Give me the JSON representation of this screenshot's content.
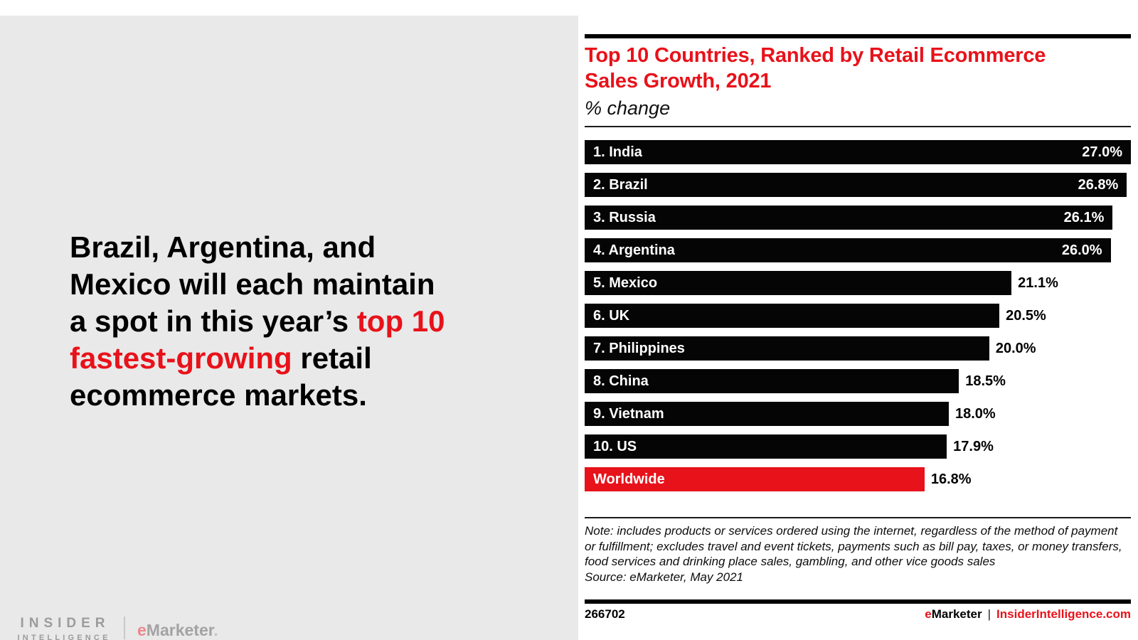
{
  "colors": {
    "red": "#e8121a",
    "panel_gray": "#e9e9e9",
    "bar_black": "#050505",
    "logo_gray": "#9b9b9b",
    "logo_red_e": "#e9898d"
  },
  "headline": {
    "segments": [
      {
        "text": "Brazil, Argentina, and Mexico will each maintain a spot in this year’s ",
        "red": false
      },
      {
        "text": "top 10 fastest-growing",
        "red": true
      },
      {
        "text": " retail ecommerce markets.",
        "red": false
      }
    ]
  },
  "branding": {
    "insider_line1": "INSIDER",
    "insider_line2": "INTELLIGENCE",
    "emarketer_e": "e",
    "emarketer_rest": "Marketer",
    "emarketer_dot": "."
  },
  "chart_data": {
    "type": "bar",
    "orientation": "horizontal",
    "title": "Top 10 Countries, Ranked by Retail Ecommerce Sales Growth, 2021",
    "subtitle": "% change",
    "categories": [
      "1. India",
      "2. Brazil",
      "3. Russia",
      "4. Argentina",
      "5. Mexico",
      "6. UK",
      "7. Philippines",
      "8. China",
      "9. Vietnam",
      "10. US",
      "Worldwide"
    ],
    "values": [
      27.0,
      26.8,
      26.1,
      26.0,
      21.1,
      20.5,
      20.0,
      18.5,
      18.0,
      17.9,
      16.8
    ],
    "value_labels": [
      "27.0%",
      "26.8%",
      "26.1%",
      "26.0%",
      "21.1%",
      "20.5%",
      "20.0%",
      "18.5%",
      "18.0%",
      "17.9%",
      "16.8%"
    ],
    "bar_colors": [
      "#050505",
      "#050505",
      "#050505",
      "#050505",
      "#050505",
      "#050505",
      "#050505",
      "#050505",
      "#050505",
      "#050505",
      "#e8121a"
    ],
    "value_label_inside": [
      true,
      true,
      true,
      true,
      false,
      false,
      false,
      false,
      false,
      false,
      false
    ],
    "xmax": 27.0,
    "xlabel": "",
    "ylabel": "",
    "grid": false,
    "legend": "none"
  },
  "note": {
    "note_text": "Note: includes products or services ordered using the internet, regardless of the method of payment or fulfillment; excludes travel and event tickets, payments such as bill pay, taxes, or money transfers, food services and drinking place sales, gambling, and other vice goods sales",
    "source_text": "Source: eMarketer, May 2021"
  },
  "footer": {
    "chart_id": "266702",
    "brand_e": "e",
    "brand_marketer": "Marketer",
    "divider": "|",
    "brand_site": "InsiderIntelligence.com"
  }
}
